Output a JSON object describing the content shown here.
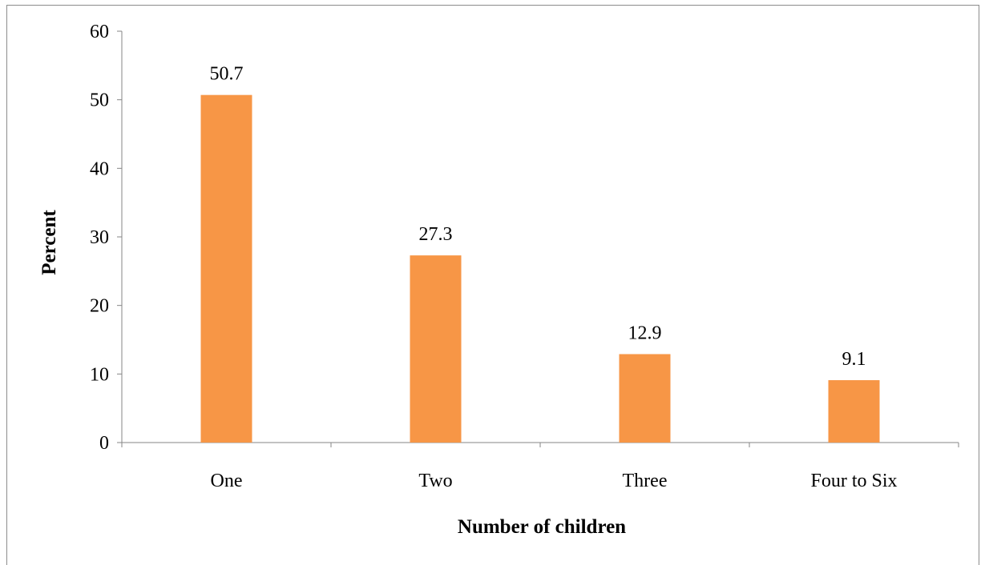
{
  "chart_data": {
    "type": "bar",
    "categories": [
      "One",
      "Two",
      "Three",
      "Four to Six"
    ],
    "values": [
      50.7,
      27.3,
      12.9,
      9.1
    ],
    "data_labels": [
      "50.7",
      "27.3",
      "12.9",
      "9.1"
    ],
    "title": "",
    "xlabel": "Number of children",
    "ylabel": "Percent",
    "ylim": [
      0,
      60
    ],
    "yticks": [
      0,
      10,
      20,
      30,
      40,
      50,
      60
    ],
    "ytick_labels": [
      "0",
      "10",
      "20",
      "30",
      "40",
      "50",
      "60"
    ],
    "grid": false,
    "legend": "none",
    "bar_color": "#F79646",
    "axis_color": "#868686"
  }
}
